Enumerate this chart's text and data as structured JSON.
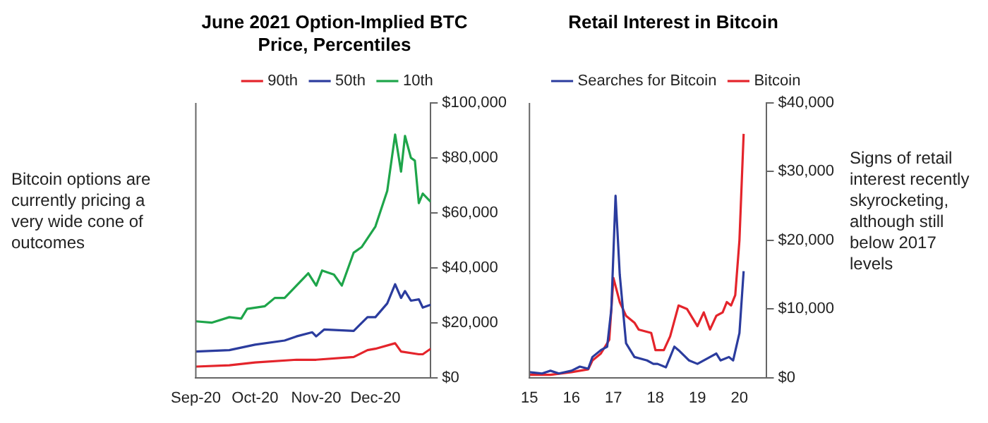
{
  "chart_data": [
    {
      "type": "line",
      "title": "June 2021 Option-Implied BTC Price, Percentiles",
      "annotations": [
        "Bitcoin options are currently pricing a very wide cone of outcomes"
      ],
      "legend": "top",
      "grid": false,
      "xlim": [
        "2020-09-01",
        "2020-12-29"
      ],
      "xticks": [
        {
          "value": "2020-09-01",
          "label": "Sep-20"
        },
        {
          "value": "2020-10-01",
          "label": "Oct-20"
        },
        {
          "value": "2020-11-01",
          "label": "Nov-20"
        },
        {
          "value": "2020-12-01",
          "label": "Dec-20"
        }
      ],
      "ylim": [
        0,
        100000
      ],
      "yticks": [
        {
          "value": 0,
          "label": "$0"
        },
        {
          "value": 20000,
          "label": "$20,000"
        },
        {
          "value": 40000,
          "label": "$40,000"
        },
        {
          "value": 60000,
          "label": "$60,000"
        },
        {
          "value": 80000,
          "label": "$80,000"
        },
        {
          "value": 100000,
          "label": "$100,000"
        }
      ],
      "series": [
        {
          "name": "90th",
          "color": "#e4242b",
          "x": [
            "2020-09-01",
            "2020-09-18",
            "2020-10-01",
            "2020-10-22",
            "2020-11-01",
            "2020-11-20",
            "2020-11-27",
            "2020-12-01",
            "2020-12-11",
            "2020-12-14",
            "2020-12-23",
            "2020-12-25",
            "2020-12-29"
          ],
          "values": [
            4000,
            4500,
            5500,
            6500,
            6500,
            7500,
            10000,
            10500,
            12500,
            9500,
            8500,
            8500,
            10500
          ]
        },
        {
          "name": "50th",
          "color": "#2b3c9e",
          "x": [
            "2020-09-01",
            "2020-09-18",
            "2020-10-01",
            "2020-10-16",
            "2020-10-22",
            "2020-10-30",
            "2020-11-01",
            "2020-11-05",
            "2020-11-20",
            "2020-11-27",
            "2020-12-01",
            "2020-12-07",
            "2020-12-11",
            "2020-12-14",
            "2020-12-16",
            "2020-12-19",
            "2020-12-23",
            "2020-12-25",
            "2020-12-29"
          ],
          "values": [
            9500,
            10000,
            12000,
            13500,
            15000,
            16500,
            15000,
            17500,
            17000,
            22000,
            22000,
            27000,
            34000,
            29000,
            31500,
            28000,
            28500,
            25500,
            26500
          ]
        },
        {
          "name": "10th",
          "color": "#1ea54a",
          "x": [
            "2020-09-01",
            "2020-09-09",
            "2020-09-18",
            "2020-09-24",
            "2020-09-27",
            "2020-10-06",
            "2020-10-11",
            "2020-10-16",
            "2020-10-22",
            "2020-10-28",
            "2020-11-01",
            "2020-11-04",
            "2020-11-10",
            "2020-11-14",
            "2020-11-20",
            "2020-11-24",
            "2020-12-01",
            "2020-12-07",
            "2020-12-11",
            "2020-12-14",
            "2020-12-16",
            "2020-12-19",
            "2020-12-21",
            "2020-12-23",
            "2020-12-25",
            "2020-12-29"
          ],
          "values": [
            20500,
            20000,
            22000,
            21500,
            25000,
            26000,
            29000,
            29000,
            33500,
            38000,
            33500,
            39000,
            37500,
            33500,
            45500,
            47500,
            55000,
            68000,
            88500,
            75000,
            88000,
            80000,
            79000,
            63500,
            67000,
            64000
          ]
        }
      ]
    },
    {
      "type": "line",
      "title": "Retail Interest in Bitcoin",
      "annotations": [
        "Signs of retail interest recently skyrocketing, although still below 2017 levels"
      ],
      "legend": "top",
      "grid": false,
      "xlim": [
        15,
        20.65
      ],
      "xticks": [
        15,
        16,
        17,
        18,
        19,
        20
      ],
      "ylim": [
        0,
        40000
      ],
      "yticks": [
        {
          "value": 0,
          "label": "$0"
        },
        {
          "value": 10000,
          "label": "$10,000"
        },
        {
          "value": 20000,
          "label": "$20,000"
        },
        {
          "value": 30000,
          "label": "$30,000"
        },
        {
          "value": 40000,
          "label": "$40,000"
        }
      ],
      "series": [
        {
          "name": "Searches for Bitcoin",
          "color": "#2b3c9e",
          "x": [
            15,
            15.3,
            15.5,
            15.7,
            16,
            16.2,
            16.4,
            16.5,
            16.7,
            16.85,
            16.95,
            17.05,
            17.15,
            17.3,
            17.5,
            17.8,
            17.95,
            18.05,
            18.25,
            18.45,
            18.55,
            18.8,
            19,
            19.3,
            19.45,
            19.55,
            19.75,
            19.85,
            20,
            20.1
          ],
          "values": [
            800,
            600,
            1000,
            600,
            1000,
            1600,
            1300,
            3000,
            4000,
            4500,
            10000,
            26500,
            15000,
            5000,
            3000,
            2500,
            2000,
            2000,
            1500,
            4500,
            4000,
            2500,
            2000,
            3000,
            3500,
            2500,
            3000,
            2500,
            6500,
            15500
          ]
        },
        {
          "name": "Bitcoin",
          "color": "#e4242b",
          "x": [
            15,
            15.5,
            16,
            16.4,
            16.5,
            16.7,
            16.9,
            17,
            17.15,
            17.3,
            17.5,
            17.6,
            17.9,
            18,
            18.2,
            18.35,
            18.55,
            18.75,
            18.9,
            19,
            19.15,
            19.3,
            19.45,
            19.6,
            19.7,
            19.8,
            19.9,
            20,
            20.1
          ],
          "values": [
            400,
            400,
            800,
            1200,
            2500,
            3500,
            5500,
            14500,
            11000,
            9000,
            8000,
            7000,
            6500,
            4000,
            4000,
            6000,
            10500,
            10000,
            8500,
            7500,
            9500,
            7000,
            9000,
            9500,
            11000,
            10500,
            12000,
            20000,
            35500
          ]
        }
      ]
    }
  ]
}
